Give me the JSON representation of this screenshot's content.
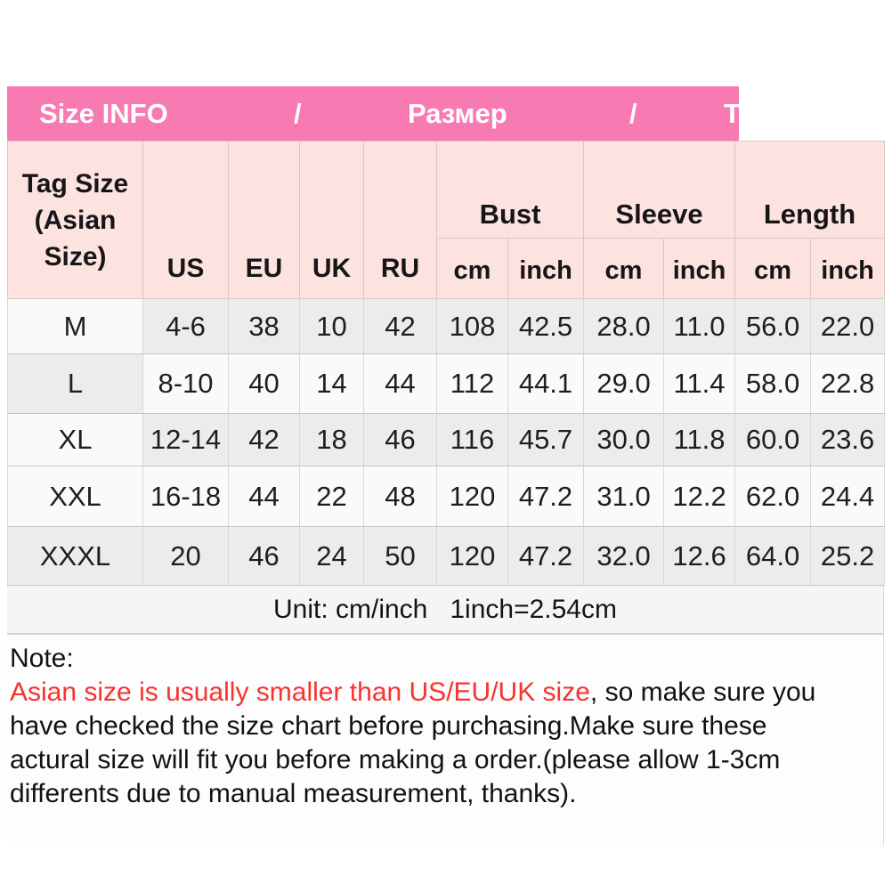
{
  "title_bar": {
    "bg_color": "#f87ab2",
    "items": [
      "Size INFO",
      "/",
      "Размер",
      "/",
      "T"
    ]
  },
  "table": {
    "header": {
      "tag_size": "Tag Size\n(Asian\nSize)",
      "regions": [
        "US",
        "EU",
        "UK",
        "RU"
      ],
      "groups": [
        "Bust",
        "Sleeve",
        "Length"
      ],
      "subunits": [
        "cm",
        "inch",
        "cm",
        "inch",
        "cm",
        "inch"
      ]
    },
    "rows": [
      {
        "tag": "M",
        "cells": [
          "4-6",
          "38",
          "10",
          "42",
          "108",
          "42.5",
          "28.0",
          "11.0",
          "56.0",
          "22.0"
        ]
      },
      {
        "tag": "L",
        "cells": [
          "8-10",
          "40",
          "14",
          "44",
          "112",
          "44.1",
          "29.0",
          "11.4",
          "58.0",
          "22.8"
        ]
      },
      {
        "tag": "XL",
        "cells": [
          "12-14",
          "42",
          "18",
          "46",
          "116",
          "45.7",
          "30.0",
          "11.8",
          "60.0",
          "23.6"
        ]
      },
      {
        "tag": "XXL",
        "cells": [
          "16-18",
          "44",
          "22",
          "48",
          "120",
          "47.2",
          "31.0",
          "12.2",
          "62.0",
          "24.4"
        ]
      },
      {
        "tag": "XXXL",
        "cells": [
          "20",
          "46",
          "24",
          "50",
          "120",
          "47.2",
          "32.0",
          "12.6",
          "64.0",
          "25.2"
        ]
      }
    ]
  },
  "unit_line": "Unit: cm/inch   1inch=2.54cm",
  "note": {
    "label": "Note:",
    "red_color": "#f8322e",
    "red_text": "Asian size is usually smaller than US/EU/UK size",
    "line1_rest": ", so make sure you",
    "line2": "have checked the size chart before purchasing.Make sure these",
    "line3": "actural size will fit you before making a order.(please allow 1-3cm",
    "line4": "differents due to manual measurement, thanks)."
  }
}
